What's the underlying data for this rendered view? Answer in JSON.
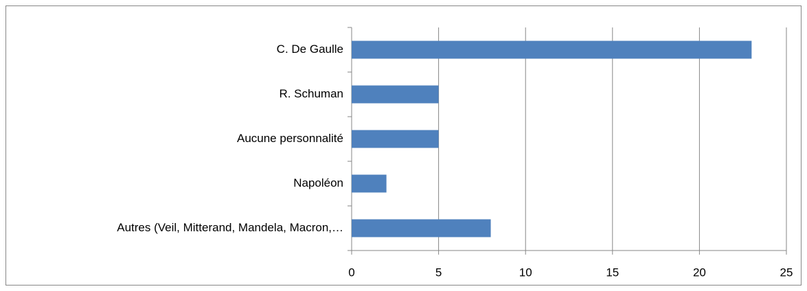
{
  "chart_data": {
    "type": "bar",
    "orientation": "horizontal",
    "categories": [
      "C. De Gaulle",
      "R. Schuman",
      "Aucune personnalité",
      "Napoléon",
      "Autres (Veil, Mitterand, Mandela, Macron,…"
    ],
    "values": [
      23,
      5,
      5,
      2,
      8
    ],
    "color": "#4f81bd",
    "xlim": [
      0,
      25
    ],
    "xticks": [
      0,
      5,
      10,
      15,
      20,
      25
    ],
    "grid": true
  }
}
